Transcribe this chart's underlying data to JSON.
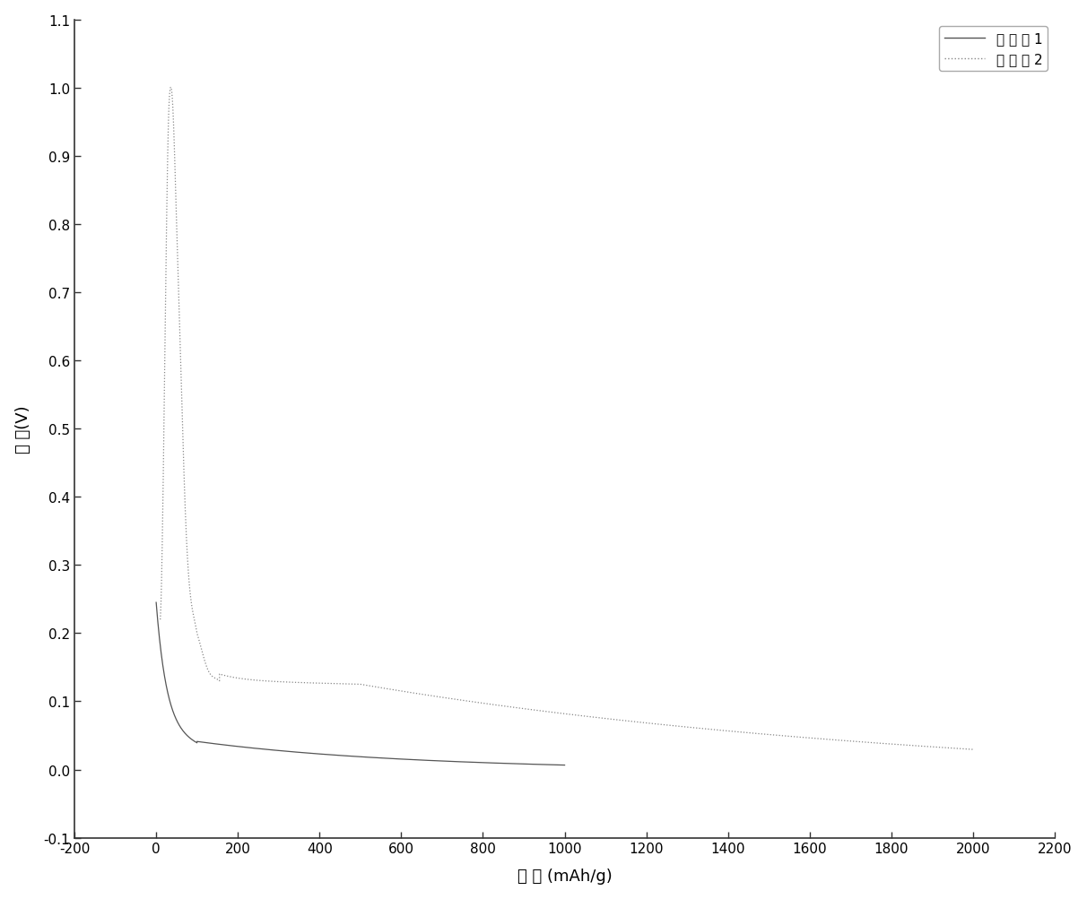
{
  "xlabel": "容 量 (mAh/g)",
  "ylabel": "电 压(V)",
  "legend1": "实 施 例 1",
  "legend2": "实 施 例 2",
  "xlim": [
    -200,
    2200
  ],
  "ylim": [
    -0.1,
    1.1
  ],
  "xticks": [
    -200,
    0,
    200,
    400,
    600,
    800,
    1000,
    1200,
    1400,
    1600,
    1800,
    2000,
    2200
  ],
  "yticks": [
    -0.1,
    0.0,
    0.1,
    0.2,
    0.3,
    0.4,
    0.5,
    0.6,
    0.7,
    0.8,
    0.9,
    1.0,
    1.1
  ],
  "line1_color": "#555555",
  "line2_color": "#888888",
  "bg_color": "#ffffff"
}
